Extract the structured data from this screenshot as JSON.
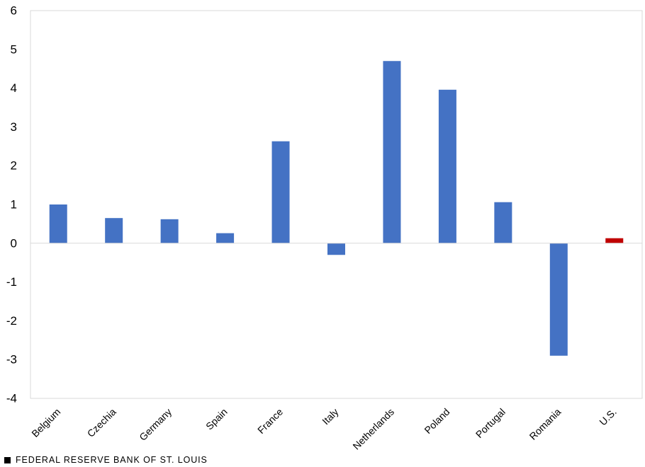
{
  "chart_data": {
    "type": "bar",
    "title": "",
    "xlabel": "",
    "ylabel": "",
    "categories": [
      "Belgium",
      "Czechia",
      "Germany",
      "Spain",
      "France",
      "Italy",
      "Netherlands",
      "Poland",
      "Portugal",
      "Romania",
      "U.S."
    ],
    "values": [
      1.0,
      0.65,
      0.62,
      0.26,
      2.63,
      -0.3,
      4.7,
      3.96,
      1.06,
      -2.9,
      0.13
    ],
    "bar_colors": [
      "#4472C4",
      "#4472C4",
      "#4472C4",
      "#4472C4",
      "#4472C4",
      "#4472C4",
      "#4472C4",
      "#4472C4",
      "#4472C4",
      "#4472C4",
      "#C00000"
    ],
    "ylim": [
      -4,
      6
    ],
    "yticks": [
      "-4",
      "-3",
      "-2",
      "-1",
      "0",
      "1",
      "2",
      "3",
      "4",
      "5",
      "6"
    ],
    "grid": false,
    "legend": "none"
  },
  "footer": {
    "source": "FEDERAL RESERVE BANK OF ST. LOUIS"
  },
  "colors": {
    "bar": "#4472C4",
    "highlight": "#C00000",
    "axis": "#D9D9D9"
  }
}
